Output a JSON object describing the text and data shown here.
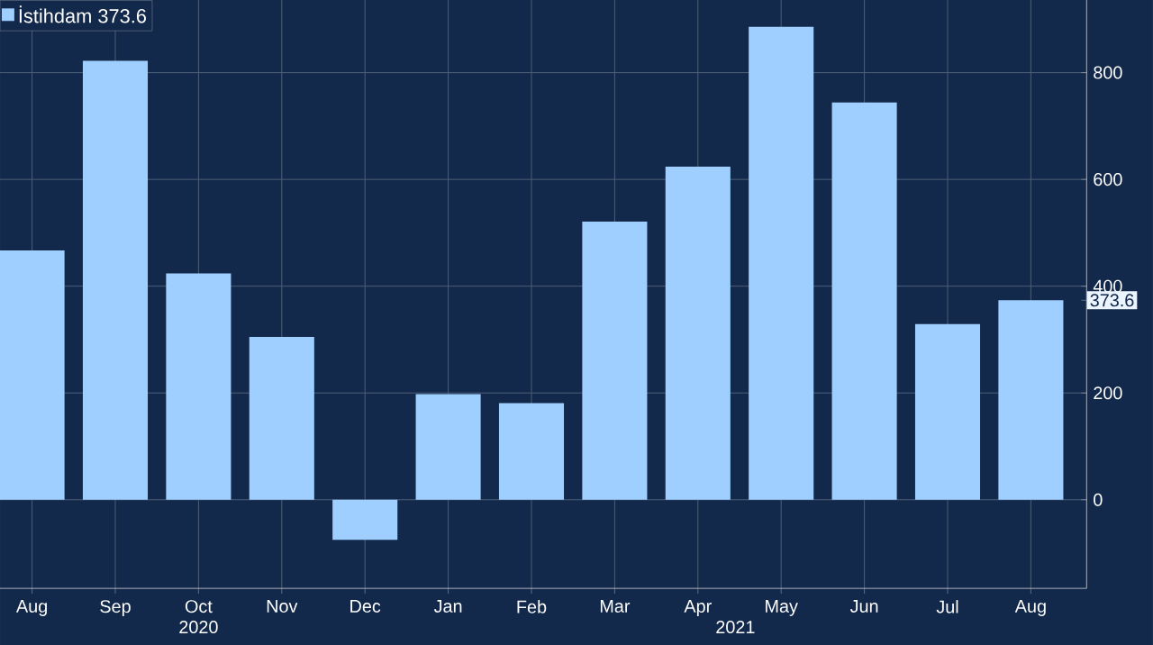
{
  "chart_data": {
    "type": "bar",
    "categories": [
      "Aug",
      "Sep",
      "Oct",
      "Nov",
      "Dec",
      "Jan",
      "Feb",
      "Mar",
      "Apr",
      "May",
      "Jun",
      "Jul",
      "Aug"
    ],
    "series": [
      {
        "name": "İstihdam 373.6",
        "color": "#9fcfff",
        "values": [
          467,
          822,
          424,
          305,
          -75,
          198,
          181,
          521,
          624,
          886,
          744,
          329,
          373.6
        ]
      }
    ],
    "annotations": [
      "2020",
      "2021"
    ],
    "ylim": [
      -166,
      936
    ],
    "yticks": [
      0,
      200,
      400,
      600,
      800,
      {
        "value": 373.6,
        "label": "373.6"
      }
    ],
    "grid": true,
    "legend": "top left"
  }
}
